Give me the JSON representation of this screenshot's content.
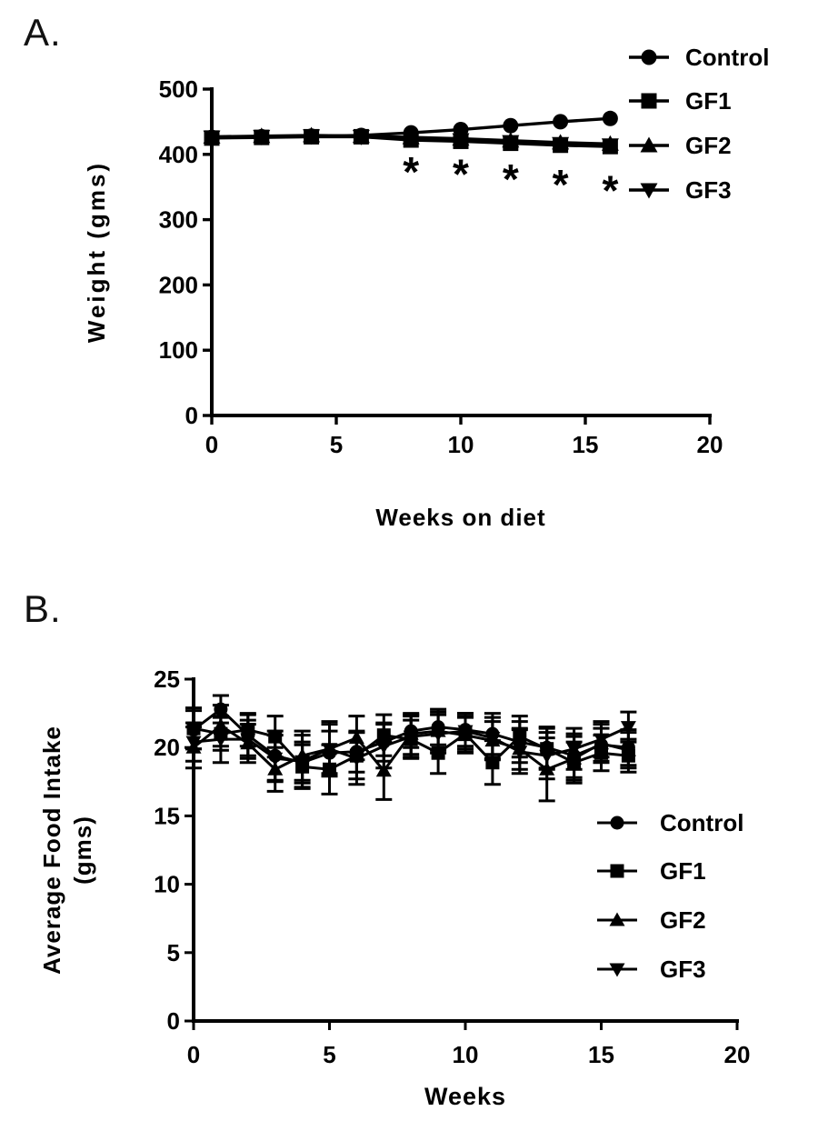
{
  "page": {
    "background": "#ffffff",
    "ink": "#000000"
  },
  "panels": [
    {
      "label": "A."
    },
    {
      "label": "B."
    }
  ],
  "chart_data": [
    {
      "type": "line",
      "panel": "A",
      "xlabel": "Weeks on diet",
      "ylabel": "Weight (gms)",
      "xlim": [
        0,
        20
      ],
      "ylim": [
        0,
        500
      ],
      "xticks": [
        0,
        5,
        10,
        15,
        20
      ],
      "yticks": [
        0,
        100,
        200,
        300,
        400,
        500
      ],
      "grid": false,
      "legend_position": "top-right",
      "x": [
        0,
        2,
        4,
        6,
        8,
        10,
        12,
        14,
        16
      ],
      "series": [
        {
          "name": "Control",
          "marker": "circle",
          "color": "#000000",
          "values": [
            426,
            427,
            428,
            429,
            433,
            438,
            444,
            450,
            455
          ]
        },
        {
          "name": "GF1",
          "marker": "square",
          "color": "#000000",
          "values": [
            425,
            426,
            427,
            427,
            422,
            420,
            417,
            414,
            412
          ]
        },
        {
          "name": "GF2",
          "marker": "triangle-up",
          "color": "#000000",
          "values": [
            427,
            428,
            429,
            428,
            426,
            424,
            421,
            418,
            416
          ]
        },
        {
          "name": "GF3",
          "marker": "triangle-down",
          "color": "#000000",
          "values": [
            426,
            427,
            428,
            427,
            424,
            422,
            419,
            416,
            414
          ]
        }
      ],
      "annotations": [
        {
          "symbol": "*",
          "x": 8,
          "y": 380
        },
        {
          "symbol": "*",
          "x": 10,
          "y": 377
        },
        {
          "symbol": "*",
          "x": 12,
          "y": 369
        },
        {
          "symbol": "*",
          "x": 14,
          "y": 361
        },
        {
          "symbol": "*",
          "x": 16,
          "y": 352
        }
      ]
    },
    {
      "type": "line",
      "panel": "B",
      "xlabel": "Weeks",
      "ylabel": "Average Food Intake",
      "ylabel_line2": "(gms)",
      "xlim": [
        0,
        20
      ],
      "ylim": [
        0,
        25
      ],
      "xticks": [
        0,
        5,
        10,
        15,
        20
      ],
      "yticks": [
        0,
        5,
        10,
        15,
        20,
        25
      ],
      "grid": false,
      "legend_position": "right-middle",
      "x": [
        0,
        1,
        2,
        3,
        4,
        5,
        6,
        7,
        8,
        9,
        10,
        11,
        12,
        13,
        14,
        15,
        16
      ],
      "series": [
        {
          "name": "Control",
          "marker": "circle",
          "color": "#000000",
          "values": [
            21.3,
            22.8,
            20.9,
            19.4,
            18.9,
            19.6,
            19.7,
            20.4,
            21.2,
            21.5,
            21.3,
            21.0,
            20.4,
            20.0,
            19.4,
            20.2,
            20.0
          ],
          "errors": [
            1.4,
            1.0,
            1.5,
            1.8,
            1.5,
            1.6,
            1.5,
            1.4,
            1.2,
            1.3,
            1.2,
            1.5,
            1.5,
            1.5,
            1.6,
            1.2,
            1.3
          ]
        },
        {
          "name": "GF1",
          "marker": "square",
          "color": "#000000",
          "values": [
            21.4,
            21.0,
            21.3,
            20.8,
            18.6,
            18.4,
            19.4,
            20.9,
            20.6,
            19.6,
            21.0,
            18.9,
            20.8,
            19.9,
            18.9,
            19.6,
            19.4
          ],
          "errors": [
            1.5,
            1.2,
            1.2,
            1.5,
            1.6,
            1.8,
            1.7,
            1.5,
            1.4,
            1.5,
            1.3,
            1.6,
            1.5,
            1.5,
            1.5,
            1.3,
            1.2
          ]
        },
        {
          "name": "GF2",
          "marker": "triangle-up",
          "color": "#000000",
          "values": [
            20.0,
            21.6,
            20.3,
            18.4,
            19.4,
            19.9,
            20.7,
            18.3,
            21.0,
            21.2,
            20.9,
            20.5,
            19.9,
            18.4,
            19.2,
            20.3,
            19.8
          ],
          "errors": [
            1.5,
            1.5,
            1.4,
            1.6,
            1.8,
            2.0,
            1.6,
            2.1,
            1.5,
            1.4,
            1.3,
            1.4,
            1.5,
            2.3,
            1.6,
            1.4,
            1.3
          ]
        },
        {
          "name": "GF3",
          "marker": "triangle-down",
          "color": "#000000",
          "values": [
            20.4,
            20.6,
            20.6,
            19.2,
            19.0,
            19.9,
            19.2,
            20.1,
            20.8,
            21.0,
            21.2,
            20.7,
            19.7,
            19.4,
            19.9,
            20.6,
            21.5
          ],
          "errors": [
            1.4,
            1.7,
            1.4,
            1.7,
            1.9,
            1.8,
            1.9,
            1.6,
            1.5,
            1.4,
            1.3,
            1.5,
            1.6,
            1.7,
            1.5,
            1.3,
            1.1
          ]
        }
      ]
    }
  ]
}
